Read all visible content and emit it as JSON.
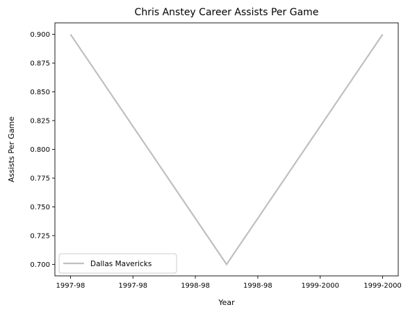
{
  "chart_data": {
    "type": "line",
    "title": "Chris Anstey Career Assists Per Game",
    "xlabel": "Year",
    "ylabel": "Assists Per Game",
    "x": [
      0,
      1,
      2
    ],
    "xticks": [
      {
        "value": 0,
        "label": "1997-98"
      },
      {
        "value": 0.4,
        "label": "1997-98"
      },
      {
        "value": 0.8,
        "label": "1998-98"
      },
      {
        "value": 1.2,
        "label": "1998-98"
      },
      {
        "value": 1.6,
        "label": "1999-2000"
      },
      {
        "value": 2.0,
        "label": "1999-2000"
      }
    ],
    "xlim": [
      -0.1,
      2.1
    ],
    "ylim": [
      0.69,
      0.91
    ],
    "yticks": [
      "0.700",
      "0.725",
      "0.750",
      "0.775",
      "0.800",
      "0.825",
      "0.850",
      "0.875",
      "0.900"
    ],
    "series": [
      {
        "name": "Dallas Mavericks",
        "color": "#bfbfbf",
        "x": [
          0,
          1,
          2
        ],
        "values": [
          0.9,
          0.7,
          0.9
        ]
      }
    ],
    "legend": "lower-left",
    "grid": false
  }
}
